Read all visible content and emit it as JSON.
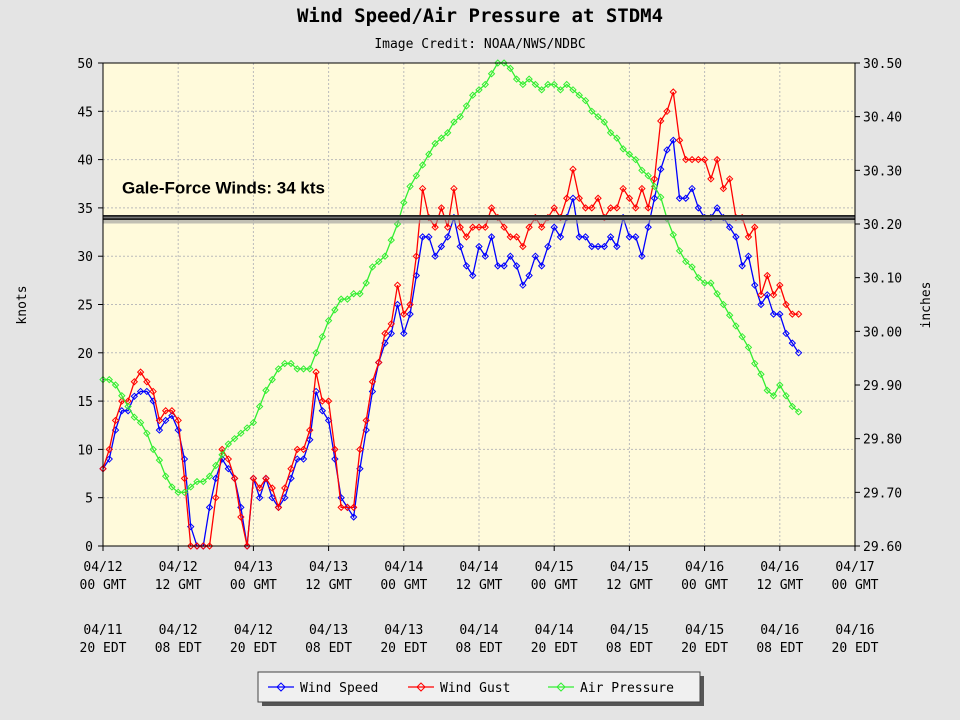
{
  "chart_data": {
    "type": "line",
    "title": "Wind Speed/Air Pressure at STDM4",
    "subtitle": "Image Credit: NOAA/NWS/NDBC",
    "y_label": "knots",
    "y2_label": "inches",
    "x": [
      0,
      1,
      2,
      3,
      4,
      5,
      6,
      7,
      8,
      9,
      10,
      11,
      12,
      13,
      14,
      15,
      16,
      17,
      18,
      19,
      20,
      21,
      22,
      23,
      24,
      25,
      26,
      27,
      28,
      29,
      30,
      31,
      32,
      33,
      34,
      35,
      36,
      37,
      38,
      39,
      40,
      41,
      42,
      43,
      44,
      45,
      46,
      47,
      48,
      49,
      50,
      51,
      52,
      53,
      54,
      55,
      56,
      57,
      58,
      59,
      60,
      61,
      62,
      63,
      64,
      65,
      66,
      67,
      68,
      69,
      70,
      71,
      72,
      73,
      74,
      75,
      76,
      77,
      78,
      79,
      80,
      81,
      82,
      83,
      84,
      85,
      86,
      87,
      88,
      89,
      90,
      91,
      92,
      93,
      94,
      95,
      96,
      97,
      98,
      99,
      100,
      101,
      102,
      103,
      104,
      105,
      106,
      107,
      108,
      109,
      110,
      111
    ],
    "series": [
      {
        "name": "Wind Speed",
        "color": "#0000ff",
        "values": [
          8,
          9,
          12,
          14,
          14,
          15.5,
          16,
          16,
          15,
          12,
          13,
          13.5,
          12,
          9,
          2,
          0,
          0,
          4,
          7,
          9,
          8,
          7,
          4,
          0,
          7,
          5,
          7,
          5,
          4,
          5,
          7,
          9,
          9,
          11,
          16,
          14,
          13,
          9,
          5,
          4,
          3,
          8,
          12,
          16,
          19,
          21,
          22,
          25,
          22,
          24,
          28,
          32,
          32,
          30,
          31,
          32,
          34,
          31,
          29,
          28,
          31,
          30,
          32,
          29,
          29,
          30,
          29,
          27,
          28,
          30,
          29,
          31,
          33,
          32,
          34,
          36,
          32,
          32,
          31,
          31,
          31,
          32,
          31,
          34,
          32,
          32,
          30,
          33,
          36,
          39,
          41,
          42,
          36,
          36,
          37,
          35,
          34,
          34,
          35,
          34,
          33,
          32,
          29,
          30,
          27,
          25,
          26,
          24,
          24,
          22,
          21,
          20
        ]
      },
      {
        "name": "Wind Gust",
        "color": "#ff0000",
        "values": [
          8,
          10,
          13,
          15,
          15,
          17,
          18,
          17,
          16,
          13,
          14,
          14,
          13,
          7,
          0,
          0,
          0,
          0,
          5,
          10,
          9,
          7,
          3,
          0,
          7,
          6,
          7,
          6,
          4,
          6,
          8,
          10,
          10,
          12,
          18,
          15,
          15,
          10,
          4,
          4,
          4,
          10,
          13,
          17,
          19,
          22,
          23,
          27,
          24,
          25,
          30,
          37,
          34,
          33,
          35,
          33,
          37,
          33,
          32,
          33,
          33,
          33,
          35,
          34,
          33,
          32,
          32,
          31,
          33,
          34,
          33,
          34,
          35,
          34,
          36,
          39,
          36,
          35,
          35,
          36,
          34,
          35,
          35,
          37,
          36,
          35,
          37,
          35,
          38,
          44,
          45,
          47,
          42,
          40,
          40,
          40,
          40,
          38,
          40,
          37,
          38,
          34,
          34,
          32,
          33,
          26,
          28,
          26,
          27,
          25,
          24,
          24
        ]
      },
      {
        "name": "Air Pressure",
        "color": "#33ee33",
        "axis": "y2",
        "values": [
          29.91,
          29.91,
          29.9,
          29.88,
          29.86,
          29.84,
          29.83,
          29.81,
          29.78,
          29.76,
          29.73,
          29.71,
          29.7,
          29.7,
          29.71,
          29.72,
          29.72,
          29.73,
          29.75,
          29.77,
          29.79,
          29.8,
          29.81,
          29.82,
          29.83,
          29.86,
          29.89,
          29.91,
          29.93,
          29.94,
          29.94,
          29.93,
          29.93,
          29.93,
          29.96,
          29.99,
          30.02,
          30.04,
          30.06,
          30.06,
          30.07,
          30.07,
          30.09,
          30.12,
          30.13,
          30.14,
          30.17,
          30.2,
          30.24,
          30.27,
          30.29,
          30.31,
          30.33,
          30.35,
          30.36,
          30.37,
          30.39,
          30.4,
          30.42,
          30.44,
          30.45,
          30.46,
          30.48,
          30.5,
          30.5,
          30.49,
          30.47,
          30.46,
          30.47,
          30.46,
          30.45,
          30.46,
          30.46,
          30.45,
          30.46,
          30.45,
          30.44,
          30.43,
          30.41,
          30.4,
          30.39,
          30.37,
          30.36,
          30.34,
          30.33,
          30.32,
          30.3,
          30.29,
          30.27,
          30.25,
          30.21,
          30.18,
          30.15,
          30.13,
          30.12,
          30.1,
          30.09,
          30.09,
          30.07,
          30.05,
          30.03,
          30.01,
          29.99,
          29.97,
          29.94,
          29.92,
          29.89,
          29.88,
          29.9,
          29.88,
          29.86,
          29.85
        ]
      }
    ],
    "xlim": [
      0,
      120
    ],
    "xticks": [
      {
        "value": 0,
        "label": [
          "04/12",
          "00 GMT"
        ]
      },
      {
        "value": 12,
        "label": [
          "04/12",
          "12 GMT"
        ]
      },
      {
        "value": 24,
        "label": [
          "04/13",
          "00 GMT"
        ]
      },
      {
        "value": 36,
        "label": [
          "04/13",
          "12 GMT"
        ]
      },
      {
        "value": 48,
        "label": [
          "04/14",
          "00 GMT"
        ]
      },
      {
        "value": 60,
        "label": [
          "04/14",
          "12 GMT"
        ]
      },
      {
        "value": 72,
        "label": [
          "04/15",
          "00 GMT"
        ]
      },
      {
        "value": 84,
        "label": [
          "04/15",
          "12 GMT"
        ]
      },
      {
        "value": 96,
        "label": [
          "04/16",
          "00 GMT"
        ]
      },
      {
        "value": 108,
        "label": [
          "04/16",
          "12 GMT"
        ]
      },
      {
        "value": 120,
        "label": [
          "04/17",
          "00 GMT"
        ]
      }
    ],
    "xticks_edt": [
      {
        "value": 0,
        "label": [
          "04/11",
          "20 EDT"
        ]
      },
      {
        "value": 12,
        "label": [
          "04/12",
          "08 EDT"
        ]
      },
      {
        "value": 24,
        "label": [
          "04/12",
          "20 EDT"
        ]
      },
      {
        "value": 36,
        "label": [
          "04/13",
          "08 EDT"
        ]
      },
      {
        "value": 48,
        "label": [
          "04/13",
          "20 EDT"
        ]
      },
      {
        "value": 60,
        "label": [
          "04/14",
          "08 EDT"
        ]
      },
      {
        "value": 72,
        "label": [
          "04/14",
          "20 EDT"
        ]
      },
      {
        "value": 84,
        "label": [
          "04/15",
          "08 EDT"
        ]
      },
      {
        "value": 96,
        "label": [
          "04/15",
          "20 EDT"
        ]
      },
      {
        "value": 108,
        "label": [
          "04/16",
          "08 EDT"
        ]
      },
      {
        "value": 120,
        "label": [
          "04/16",
          "20 EDT"
        ]
      }
    ],
    "ylim": [
      0,
      50
    ],
    "yticks": [
      0,
      5,
      10,
      15,
      20,
      25,
      30,
      35,
      40,
      45,
      50
    ],
    "y2lim": [
      29.6,
      30.5
    ],
    "y2ticks": [
      {
        "value": 29.6,
        "label": "29.60"
      },
      {
        "value": 29.7,
        "label": "29.70"
      },
      {
        "value": 29.8,
        "label": "29.80"
      },
      {
        "value": 29.9,
        "label": "29.90"
      },
      {
        "value": 30.0,
        "label": "30.00"
      },
      {
        "value": 30.1,
        "label": "30.10"
      },
      {
        "value": 30.2,
        "label": "30.20"
      },
      {
        "value": 30.3,
        "label": "30.30"
      },
      {
        "value": 30.4,
        "label": "30.40"
      },
      {
        "value": 30.5,
        "label": "30.50"
      }
    ],
    "grid": true,
    "annotation": {
      "text": "Gale-Force Winds: 34 kts",
      "value": 34
    }
  }
}
